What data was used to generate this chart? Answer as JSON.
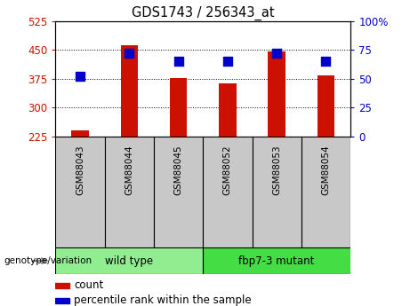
{
  "title": "GDS1743 / 256343_at",
  "samples": [
    "GSM88043",
    "GSM88044",
    "GSM88045",
    "GSM88052",
    "GSM88053",
    "GSM88054"
  ],
  "counts": [
    240,
    462,
    376,
    362,
    447,
    384
  ],
  "percentile_ranks": [
    52,
    72,
    65,
    65,
    72,
    65
  ],
  "y_min": 225,
  "y_max": 525,
  "y_ticks": [
    225,
    300,
    375,
    450,
    525
  ],
  "right_y_ticks": [
    0,
    25,
    50,
    75,
    100
  ],
  "right_y_tick_labels": [
    "0",
    "25",
    "50",
    "75",
    "100%"
  ],
  "bar_color": "#CC1100",
  "dot_color": "#0000CC",
  "groups": [
    {
      "label": "wild type",
      "samples": [
        0,
        1,
        2
      ],
      "color": "#90EE90"
    },
    {
      "label": "fbp7-3 mutant",
      "samples": [
        3,
        4,
        5
      ],
      "color": "#44DD44"
    }
  ],
  "group_label": "genotype/variation",
  "legend_count_label": "count",
  "legend_pct_label": "percentile rank within the sample",
  "background_gray": "#C8C8C8",
  "tick_label_color_left": "#CC1100",
  "tick_label_color_right": "#0000CC",
  "bar_width": 0.35,
  "dot_size": 45
}
